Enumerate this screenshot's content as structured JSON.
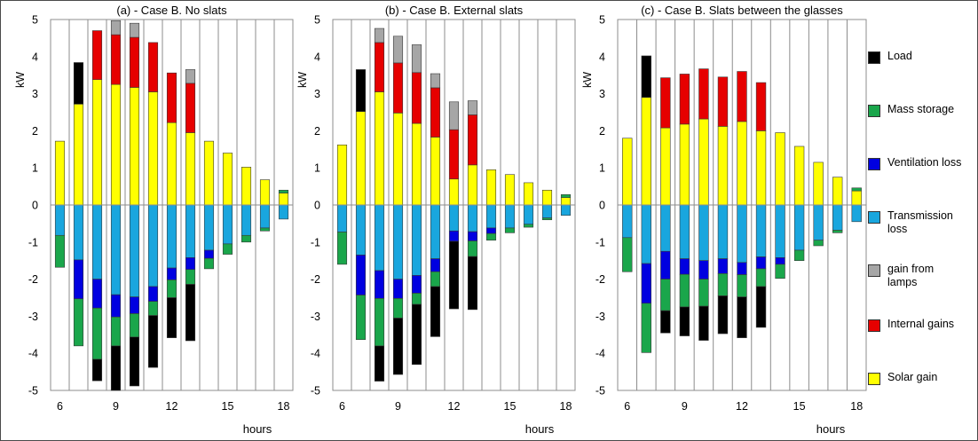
{
  "chart_data": [
    {
      "type": "bar",
      "stacked": true,
      "title": "(a) - Case B. No slats",
      "ylabel": "kW",
      "xlabel": "hours",
      "ylim": [
        -5,
        5
      ],
      "yticks": [
        5,
        4,
        3,
        2,
        1,
        0,
        -1,
        -2,
        -3,
        -4,
        -5
      ],
      "xlim": [
        5.5,
        18.5
      ],
      "xticks": [
        6,
        9,
        12,
        15,
        18
      ],
      "grid": "vertical",
      "hours": [
        6,
        7,
        8,
        9,
        10,
        11,
        12,
        13,
        14,
        15,
        16,
        17,
        18
      ],
      "series": [
        {
          "name": "Solar gain",
          "values": [
            1.72,
            2.72,
            3.38,
            3.25,
            3.17,
            3.05,
            2.22,
            1.95,
            1.72,
            1.4,
            1.02,
            0.68,
            0.32
          ]
        },
        {
          "name": "Internal gains",
          "values": [
            0,
            0,
            1.32,
            1.34,
            1.35,
            1.33,
            1.34,
            1.33,
            0,
            0,
            0,
            0,
            0
          ]
        },
        {
          "name": "gain from lamps",
          "values": [
            0,
            0,
            0,
            0.38,
            0.38,
            0,
            0,
            0.37,
            0,
            0,
            0,
            0,
            0
          ]
        },
        {
          "name": "Load",
          "values": [
            0,
            1.12,
            0,
            0,
            0,
            0,
            0,
            0,
            0,
            0,
            0,
            0,
            0
          ]
        },
        {
          "name": "Transmission loss",
          "values": [
            -0.82,
            -1.48,
            -2.0,
            -2.42,
            -2.48,
            -2.2,
            -1.7,
            -1.42,
            -1.22,
            -1.05,
            -0.82,
            -0.62,
            -0.38
          ]
        },
        {
          "name": "Ventilation loss",
          "values": [
            0,
            -1.05,
            -0.78,
            -0.6,
            -0.45,
            -0.4,
            -0.32,
            -0.32,
            -0.22,
            0,
            0,
            0,
            0
          ]
        },
        {
          "name": "Mass storage",
          "values": [
            -0.86,
            -1.27,
            -1.38,
            -0.78,
            -0.63,
            -0.38,
            -0.48,
            -0.4,
            -0.28,
            -0.28,
            -0.18,
            -0.08,
            0.08
          ]
        },
        {
          "name": "Load",
          "values": [
            0,
            0,
            -0.58,
            -1.2,
            -1.32,
            -1.4,
            -1.08,
            -1.52,
            0,
            0,
            0,
            0,
            0
          ]
        }
      ]
    },
    {
      "type": "bar",
      "stacked": true,
      "title": "(b) - Case B. External slats",
      "ylabel": "kW",
      "xlabel": "hours",
      "ylim": [
        -5,
        5
      ],
      "yticks": [
        5,
        4,
        3,
        2,
        1,
        0,
        -1,
        -2,
        -3,
        -4,
        -5
      ],
      "xlim": [
        5.5,
        18.5
      ],
      "xticks": [
        6,
        9,
        12,
        15,
        18
      ],
      "grid": "vertical",
      "hours": [
        6,
        7,
        8,
        9,
        10,
        11,
        12,
        13,
        14,
        15,
        16,
        17,
        18
      ],
      "series": [
        {
          "name": "Solar gain",
          "values": [
            1.62,
            2.52,
            3.05,
            2.48,
            2.2,
            1.83,
            0.7,
            1.08,
            0.95,
            0.82,
            0.6,
            0.4,
            0.2
          ]
        },
        {
          "name": "Internal gains",
          "values": [
            0,
            0,
            1.33,
            1.35,
            1.37,
            1.33,
            1.33,
            1.35,
            0,
            0,
            0,
            0,
            0
          ]
        },
        {
          "name": "gain from lamps",
          "values": [
            0,
            0,
            0.38,
            0.72,
            0.75,
            0.38,
            0.75,
            0.38,
            0,
            0,
            0,
            0,
            0
          ]
        },
        {
          "name": "Load",
          "values": [
            0,
            1.13,
            0,
            0,
            0,
            0,
            0,
            0,
            0,
            0,
            0,
            0,
            0
          ]
        },
        {
          "name": "Transmission loss",
          "values": [
            -0.73,
            -1.35,
            -1.77,
            -2.0,
            -1.9,
            -1.45,
            -0.7,
            -0.72,
            -0.62,
            -0.62,
            -0.52,
            -0.35,
            -0.28
          ]
        },
        {
          "name": "Ventilation loss",
          "values": [
            0,
            -1.08,
            -0.75,
            -0.52,
            -0.48,
            -0.35,
            -0.28,
            -0.25,
            -0.15,
            0,
            0,
            0,
            0
          ]
        },
        {
          "name": "Mass storage",
          "values": [
            -0.87,
            -1.2,
            -1.28,
            -0.53,
            -0.3,
            -0.4,
            0,
            -0.42,
            -0.18,
            -0.13,
            -0.08,
            -0.05,
            0.08
          ]
        },
        {
          "name": "Load",
          "values": [
            0,
            0,
            -0.95,
            -1.52,
            -1.62,
            -1.35,
            -1.82,
            -1.43,
            0,
            0,
            0,
            0,
            0
          ]
        }
      ]
    },
    {
      "type": "bar",
      "stacked": true,
      "title": "(c) - Case B. Slats between the glasses",
      "ylabel": "kW",
      "xlabel": "hours",
      "ylim": [
        -5,
        5
      ],
      "yticks": [
        5,
        4,
        3,
        2,
        1,
        0,
        -1,
        -2,
        -3,
        -4,
        -5
      ],
      "xlim": [
        5.5,
        18.5
      ],
      "xticks": [
        6,
        9,
        12,
        15,
        18
      ],
      "grid": "vertical",
      "hours": [
        6,
        7,
        8,
        9,
        10,
        11,
        12,
        13,
        14,
        15,
        16,
        17,
        18
      ],
      "series": [
        {
          "name": "Solar gain",
          "values": [
            1.8,
            2.9,
            2.08,
            2.18,
            2.32,
            2.12,
            2.25,
            2.0,
            1.95,
            1.58,
            1.15,
            0.75,
            0.38
          ]
        },
        {
          "name": "Internal gains",
          "values": [
            0,
            0,
            1.35,
            1.35,
            1.35,
            1.33,
            1.35,
            1.3,
            0,
            0,
            0,
            0,
            0
          ]
        },
        {
          "name": "gain from lamps",
          "values": [
            0,
            0,
            0,
            0,
            0,
            0,
            0,
            0,
            0,
            0,
            0,
            0,
            0
          ]
        },
        {
          "name": "Load",
          "values": [
            0,
            1.12,
            0,
            0,
            0,
            0,
            0,
            0,
            0,
            0,
            0,
            0,
            0
          ]
        },
        {
          "name": "Transmission loss",
          "values": [
            -0.88,
            -1.58,
            -1.25,
            -1.45,
            -1.5,
            -1.45,
            -1.55,
            -1.4,
            -1.42,
            -1.22,
            -0.95,
            -0.68,
            -0.45
          ]
        },
        {
          "name": "Ventilation loss",
          "values": [
            0,
            -1.07,
            -0.75,
            -0.42,
            -0.5,
            -0.4,
            -0.33,
            -0.32,
            -0.18,
            0,
            0,
            0,
            0
          ]
        },
        {
          "name": "Mass storage",
          "values": [
            -0.92,
            -1.33,
            -0.85,
            -0.88,
            -0.73,
            -0.6,
            -0.6,
            -0.48,
            -0.38,
            -0.28,
            -0.15,
            -0.07,
            0.08
          ]
        },
        {
          "name": "Load",
          "values": [
            0,
            0,
            -0.6,
            -0.78,
            -0.92,
            -1.02,
            -1.1,
            -1.1,
            0,
            0,
            0,
            0,
            0
          ]
        }
      ]
    }
  ],
  "legend": {
    "items": [
      {
        "label": "Load",
        "color": "#000000"
      },
      {
        "label": "Mass storage",
        "color": "#1aa64b"
      },
      {
        "label": "Ventilation loss",
        "color": "#0000e0"
      },
      {
        "label": "Transmission\nloss",
        "color": "#19a6de"
      },
      {
        "label": "gain from\nlamps",
        "color": "#a6a6a6"
      },
      {
        "label": "Internal gains",
        "color": "#e60000"
      },
      {
        "label": "Solar gain",
        "color": "#ffff00"
      }
    ]
  },
  "series_colors": {
    "Solar gain": "#ffff00",
    "Internal gains": "#e60000",
    "gain from lamps": "#a6a6a6",
    "Load": "#000000",
    "Transmission loss": "#19a6de",
    "Ventilation loss": "#0000e0",
    "Mass storage": "#1aa64b"
  }
}
